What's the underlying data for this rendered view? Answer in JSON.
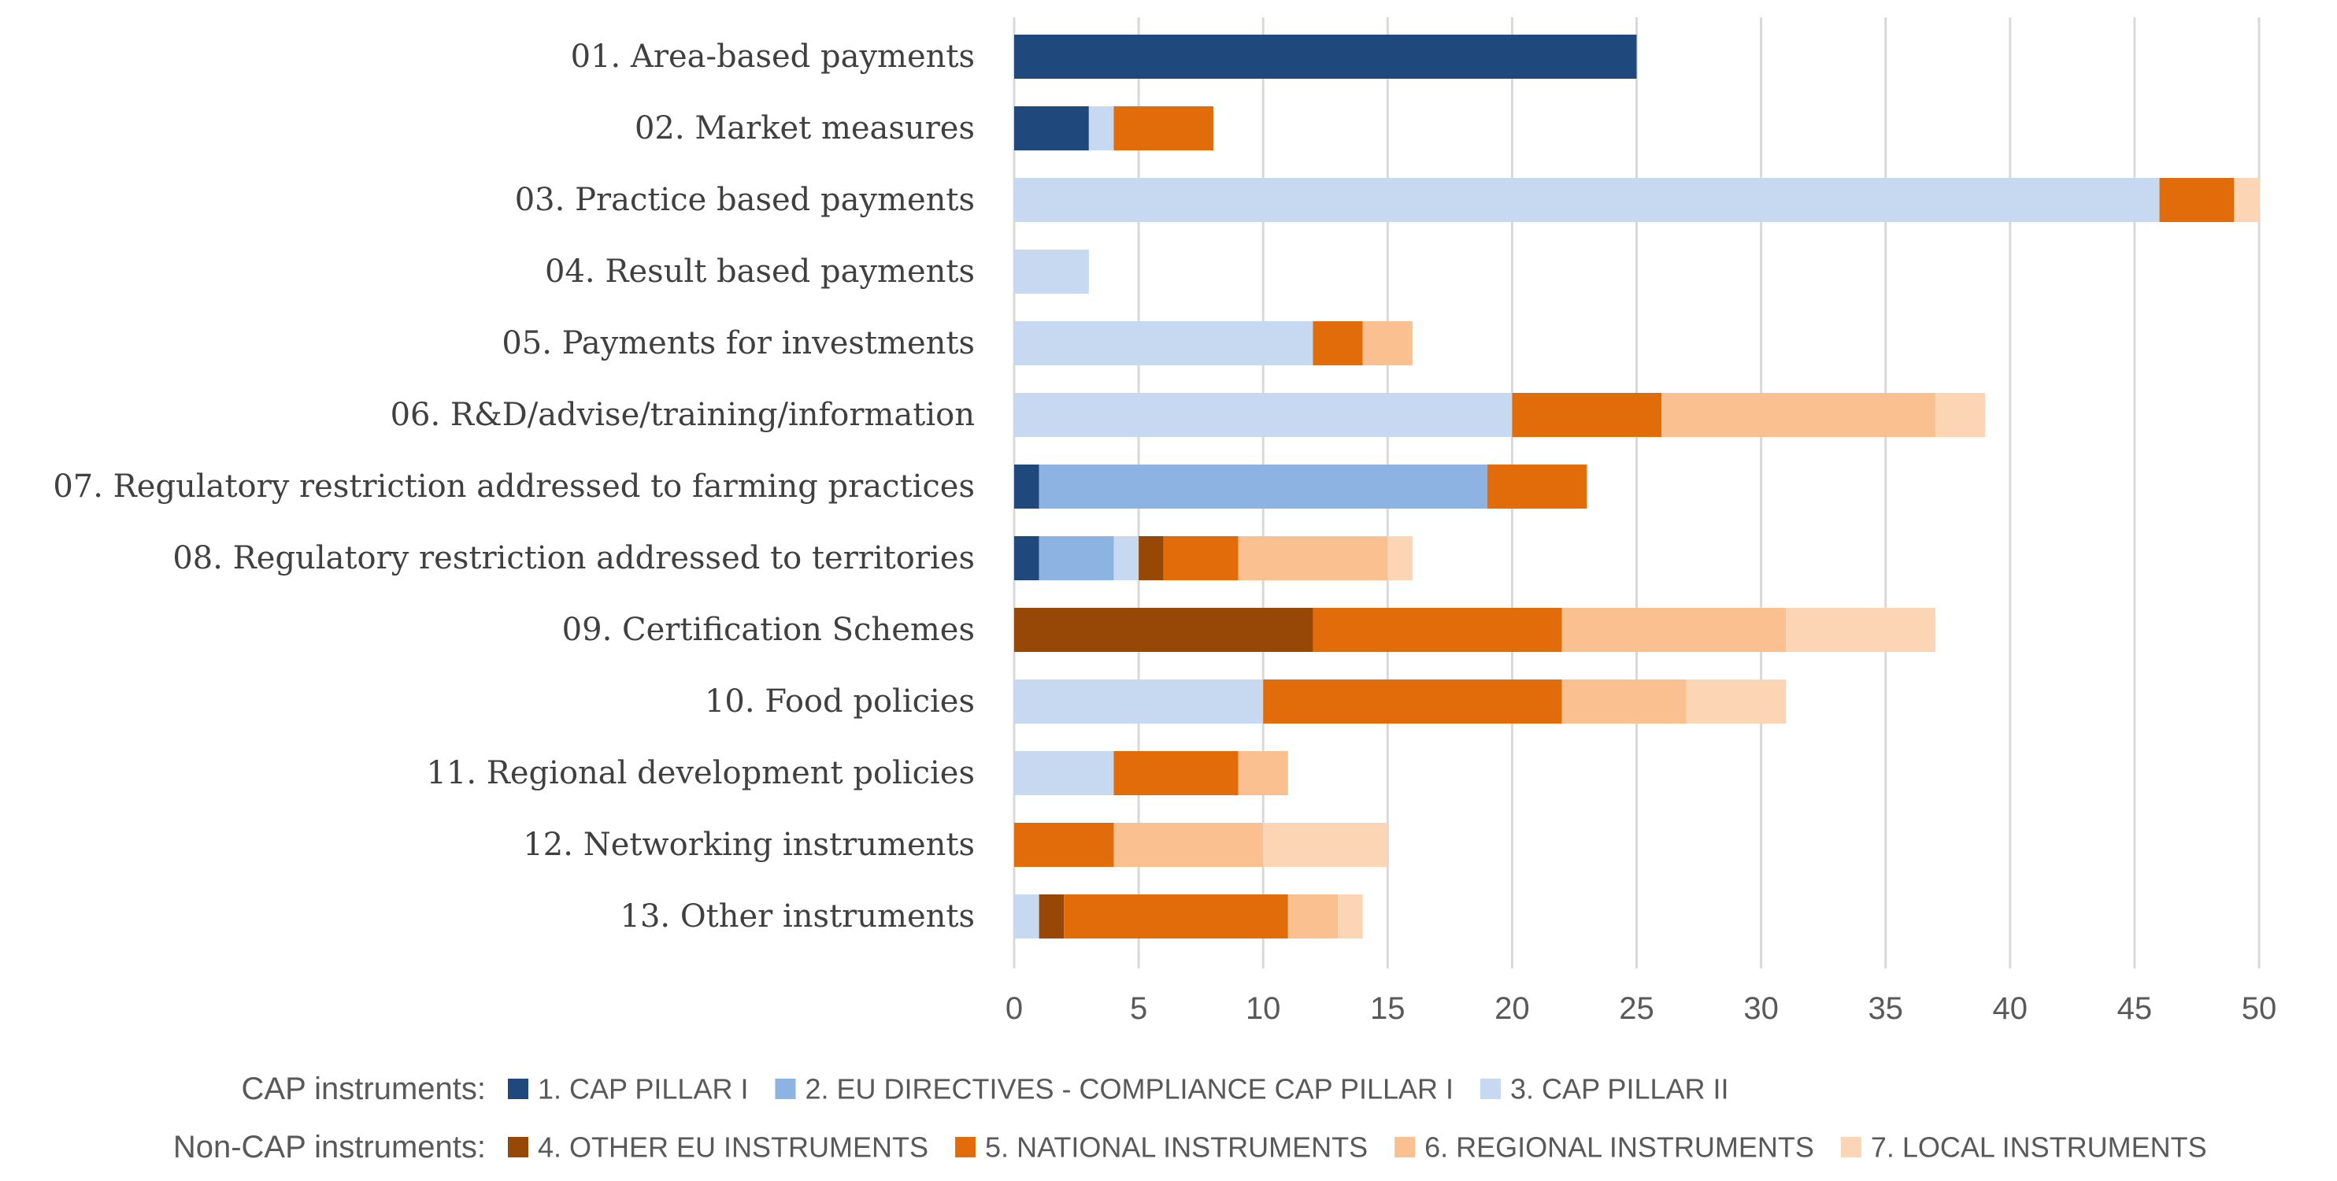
{
  "chart_data": {
    "type": "bar",
    "orientation": "horizontal",
    "stacked": true,
    "categories": [
      "01. Area-based payments",
      "02. Market measures",
      "03. Practice based payments",
      "04. Result based payments",
      "05. Payments for investments",
      "06. R&D/advise/training/information",
      "07. Regulatory restriction addressed to farming practices",
      "08. Regulatory restriction addressed to territories",
      "09. Certification Schemes",
      "10. Food policies",
      "11. Regional development policies",
      "12. Networking instruments",
      "13. Other instruments"
    ],
    "series": [
      {
        "name": "1. CAP PILLAR I",
        "color": "#1f497d",
        "values": [
          25,
          3,
          0,
          0,
          0,
          0,
          1,
          1,
          0,
          0,
          0,
          0,
          0
        ]
      },
      {
        "name": "2. EU DIRECTIVES - COMPLIANCE CAP PILLAR I",
        "color": "#8db3e2",
        "values": [
          0,
          0,
          0,
          0,
          0,
          0,
          18,
          3,
          0,
          0,
          0,
          0,
          0
        ]
      },
      {
        "name": "3. CAP PILLAR II",
        "color": "#c6d9f1",
        "values": [
          0,
          1,
          46,
          3,
          12,
          20,
          0,
          1,
          0,
          10,
          4,
          0,
          1
        ]
      },
      {
        "name": "4. OTHER EU INSTRUMENTS",
        "color": "#974706",
        "values": [
          0,
          0,
          0,
          0,
          0,
          0,
          0,
          1,
          12,
          0,
          0,
          0,
          1
        ]
      },
      {
        "name": "5. NATIONAL INSTRUMENTS",
        "color": "#e36c0a",
        "values": [
          0,
          4,
          3,
          0,
          2,
          6,
          4,
          3,
          10,
          12,
          5,
          4,
          9
        ]
      },
      {
        "name": "6. REGIONAL INSTRUMENTS",
        "color": "#fac090",
        "values": [
          0,
          0,
          0,
          0,
          2,
          11,
          0,
          6,
          9,
          5,
          2,
          6,
          2
        ]
      },
      {
        "name": "7. LOCAL INSTRUMENTS",
        "color": "#fcd5b4",
        "values": [
          0,
          0,
          1,
          0,
          0,
          2,
          0,
          1,
          6,
          4,
          0,
          5,
          1
        ]
      }
    ],
    "xlim": [
      0,
      50
    ],
    "x_ticks": [
      0,
      5,
      10,
      15,
      20,
      25,
      30,
      35,
      40,
      45,
      50
    ],
    "x_tick_labels": [
      "0",
      "5",
      "10",
      "15",
      "20",
      "25",
      "30",
      "35",
      "40",
      "45",
      "50"
    ],
    "grid": true,
    "legend": {
      "position": "bottom",
      "groups": [
        {
          "label": "CAP instruments:",
          "series": [
            0,
            1,
            2
          ]
        },
        {
          "label": "Non-CAP instruments:",
          "series": [
            3,
            4,
            5,
            6
          ]
        }
      ]
    },
    "title": "",
    "xlabel": "",
    "ylabel": ""
  }
}
